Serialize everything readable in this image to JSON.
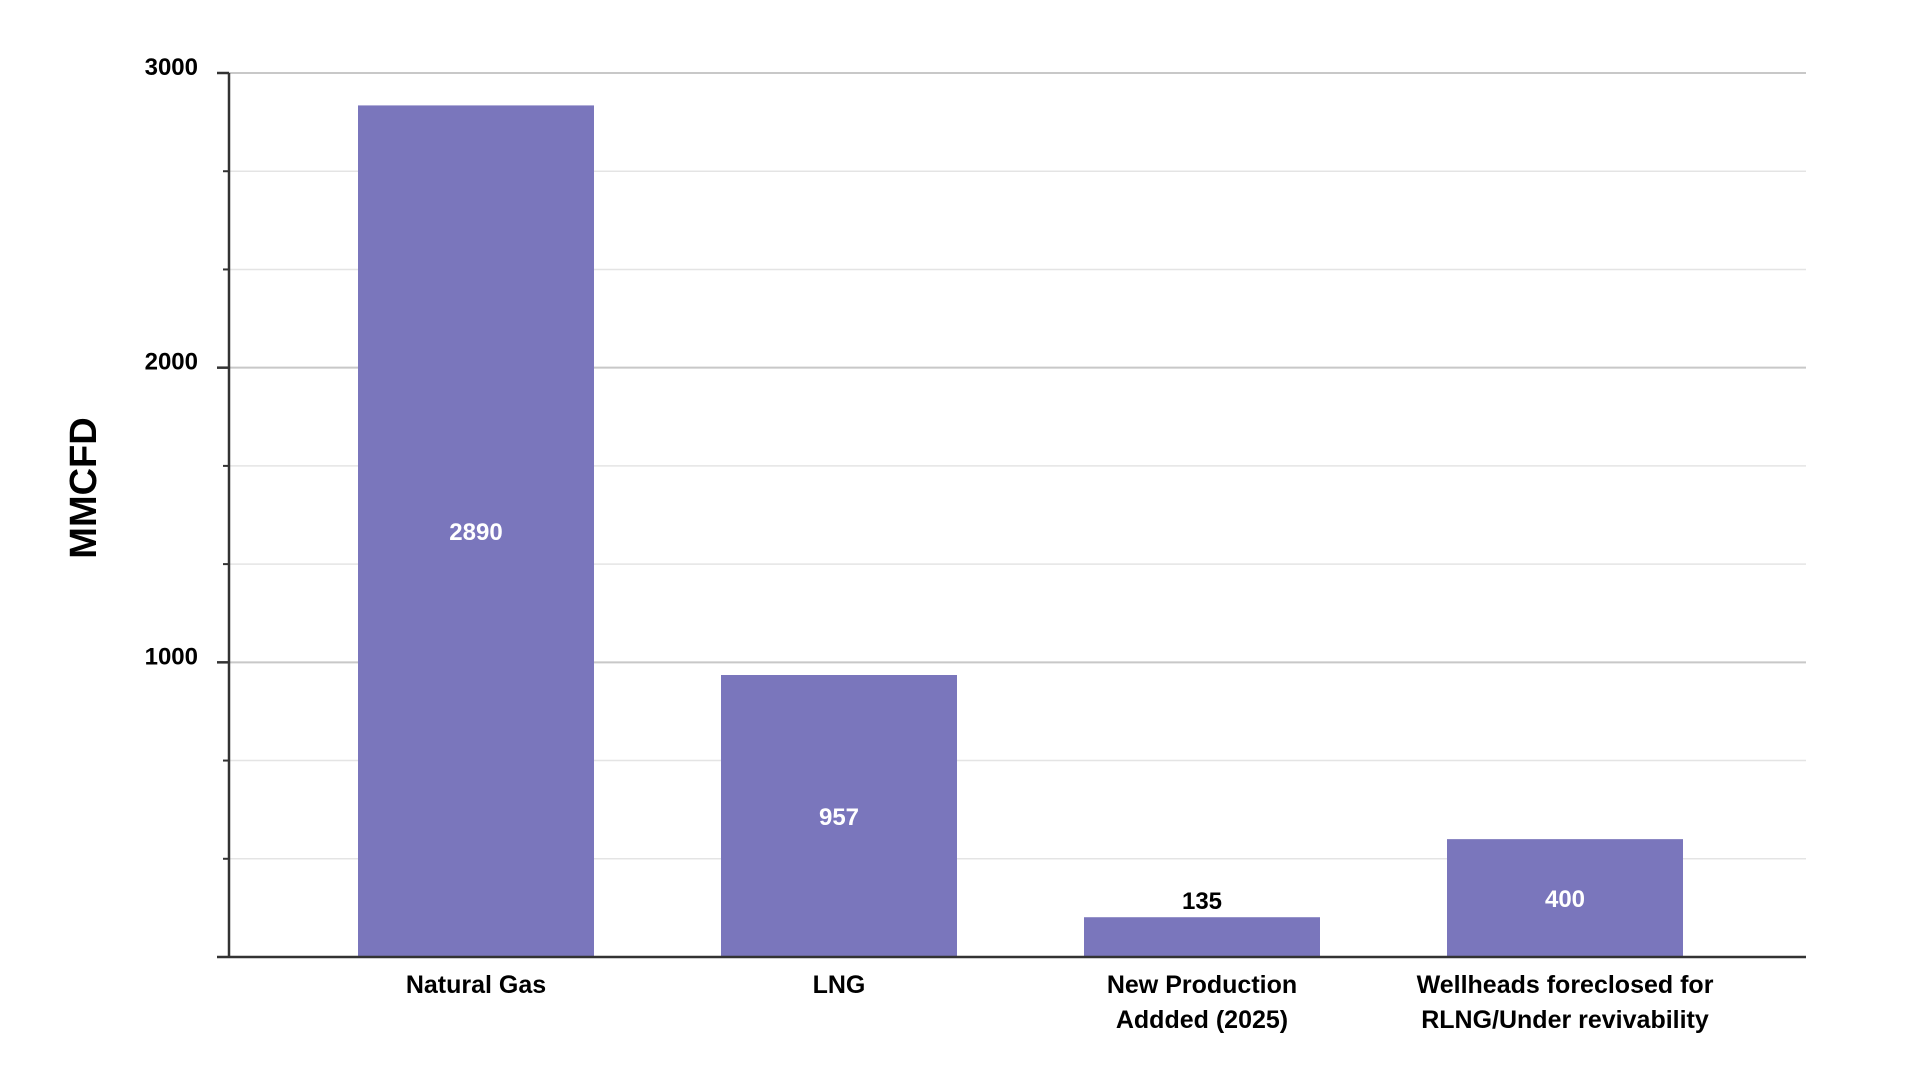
{
  "chart_data": {
    "type": "bar",
    "categories": [
      [
        "Natural Gas"
      ],
      [
        "LNG"
      ],
      [
        "New Production",
        "Addded (2025)"
      ],
      [
        "Wellheads foreclosed for",
        "RLNG/Under revivability"
      ]
    ],
    "values": [
      2890,
      957,
      135,
      400
    ],
    "data_labels": [
      "2890",
      "957",
      "135",
      "400"
    ],
    "ylabel": "MMCFD",
    "xlabel": "",
    "ylim": [
      0,
      3000
    ],
    "yticks": [
      1000,
      2000,
      3000
    ],
    "ytick_labels": [
      "1000",
      "2000",
      "3000"
    ],
    "minor_step": 333.33,
    "grid": true,
    "legend": "none",
    "colors": {
      "bar": "#7a76bc",
      "axis": "#333333",
      "grid_major": "#c8c8c8",
      "grid_minor": "#e4e4e4",
      "label_inside": "#ffffff",
      "label_outside": "#000000"
    }
  }
}
